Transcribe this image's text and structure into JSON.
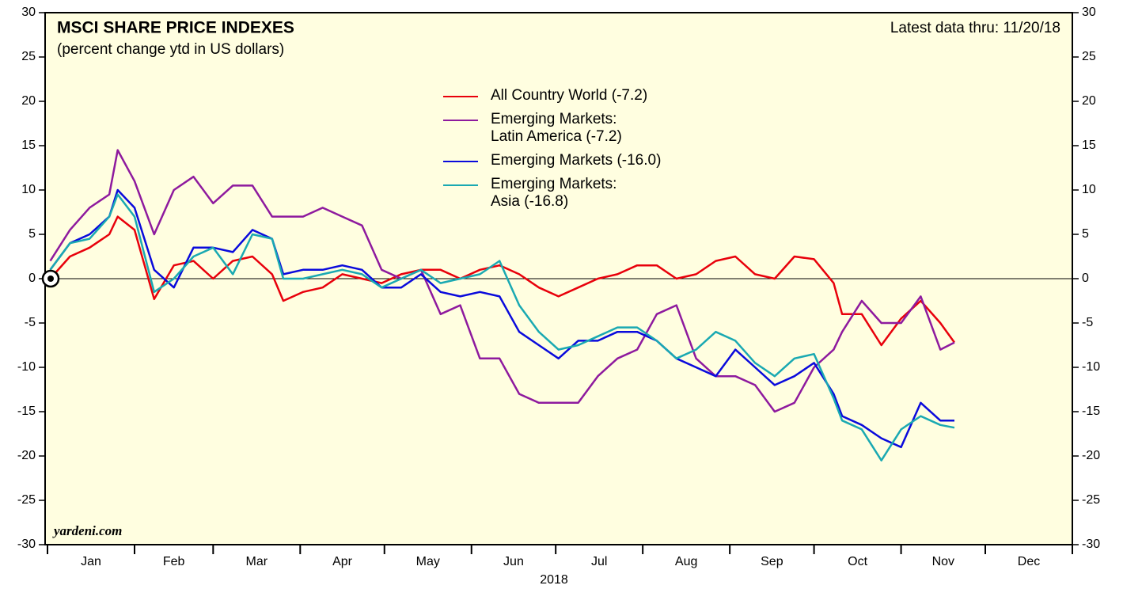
{
  "chart_data": {
    "type": "line",
    "title": "MSCI SHARE PRICE INDEXES",
    "subtitle": "(percent change ytd in US dollars)",
    "annotation": "Latest data thru: 11/20/18",
    "source": "yardeni.com",
    "xlabel": "2018",
    "categories": [
      "Jan",
      "Feb",
      "Mar",
      "Apr",
      "May",
      "Jun",
      "Jul",
      "Aug",
      "Sep",
      "Oct",
      "Nov",
      "Dec"
    ],
    "xlim": [
      0,
      365
    ],
    "xticks": [
      0,
      31,
      59,
      90,
      120,
      151,
      181,
      212,
      243,
      273,
      304,
      334,
      365
    ],
    "ylim": [
      -30,
      30
    ],
    "yticks": [
      -30,
      -25,
      -20,
      -15,
      -10,
      -5,
      0,
      5,
      10,
      15,
      20,
      25,
      30
    ],
    "x": [
      1,
      8,
      15,
      22,
      25,
      31,
      38,
      45,
      52,
      59,
      66,
      73,
      80,
      84,
      91,
      98,
      105,
      112,
      119,
      126,
      133,
      140,
      147,
      154,
      161,
      168,
      175,
      182,
      189,
      196,
      203,
      210,
      217,
      224,
      231,
      238,
      245,
      252,
      259,
      266,
      273,
      280,
      283,
      290,
      297,
      304,
      311,
      318,
      323
    ],
    "series": [
      {
        "name": "All Country World (-7.2)",
        "color": "#e8000b",
        "values": [
          0,
          2.5,
          3.5,
          5,
          7,
          5.5,
          -2.3,
          1.5,
          2,
          0,
          2,
          2.5,
          0.5,
          -2.5,
          -1.5,
          -1,
          0.5,
          0,
          -0.5,
          0.5,
          1,
          1,
          0,
          1,
          1.5,
          0.5,
          -1,
          -2,
          -1,
          0,
          0.5,
          1.5,
          1.5,
          0,
          0.5,
          2,
          2.5,
          0.5,
          0,
          2.5,
          2.2,
          -0.5,
          -4,
          -4,
          -7.5,
          -4.5,
          -2.5,
          -5,
          -7.2
        ]
      },
      {
        "name": "Emerging Markets:\nLatin America (-7.2)",
        "color": "#8e1a9e",
        "values": [
          2,
          5.5,
          8,
          9.5,
          14.5,
          11,
          5,
          10,
          11.5,
          8.5,
          10.5,
          10.5,
          7,
          7,
          7,
          8,
          7,
          6,
          1,
          0,
          1,
          -4,
          -3,
          -9,
          -9,
          -13,
          -14,
          -14,
          -14,
          -11,
          -9,
          -8,
          -4,
          -3,
          -9,
          -11,
          -11,
          -12,
          -15,
          -14,
          -10,
          -8,
          -6,
          -2.5,
          -5,
          -5,
          -2,
          -8,
          -7.2
        ]
      },
      {
        "name": "Emerging Markets (-16.0)",
        "color": "#0a0adc",
        "values": [
          1,
          4,
          5,
          7,
          10,
          8,
          1,
          -1,
          3.5,
          3.5,
          3,
          5.5,
          4.5,
          0.5,
          1,
          1,
          1.5,
          1,
          -1,
          -1,
          0.5,
          -1.5,
          -2,
          -1.5,
          -2,
          -6,
          -7.5,
          -9,
          -7,
          -7,
          -6,
          -6,
          -7,
          -9,
          -10,
          -11,
          -8,
          -10,
          -12,
          -11,
          -9.5,
          -13,
          -15.5,
          -16.5,
          -18,
          -19,
          -14,
          -16,
          -16.0
        ]
      },
      {
        "name": "Emerging Markets:\nAsia (-16.8)",
        "color": "#1aa9b2",
        "values": [
          1,
          4,
          4.5,
          7,
          9.5,
          7,
          -1.5,
          0,
          2.5,
          3.5,
          0.5,
          5,
          4.5,
          0,
          0,
          0.5,
          1,
          0.5,
          -1,
          0,
          1,
          -0.5,
          0,
          0.5,
          2,
          -3,
          -6,
          -8,
          -7.5,
          -6.5,
          -5.5,
          -5.5,
          -7,
          -9,
          -8,
          -6,
          -7,
          -9.5,
          -11,
          -9,
          -8.5,
          -13.5,
          -16,
          -17,
          -20.5,
          -17,
          -15.5,
          -16.5,
          -16.8
        ]
      }
    ]
  }
}
